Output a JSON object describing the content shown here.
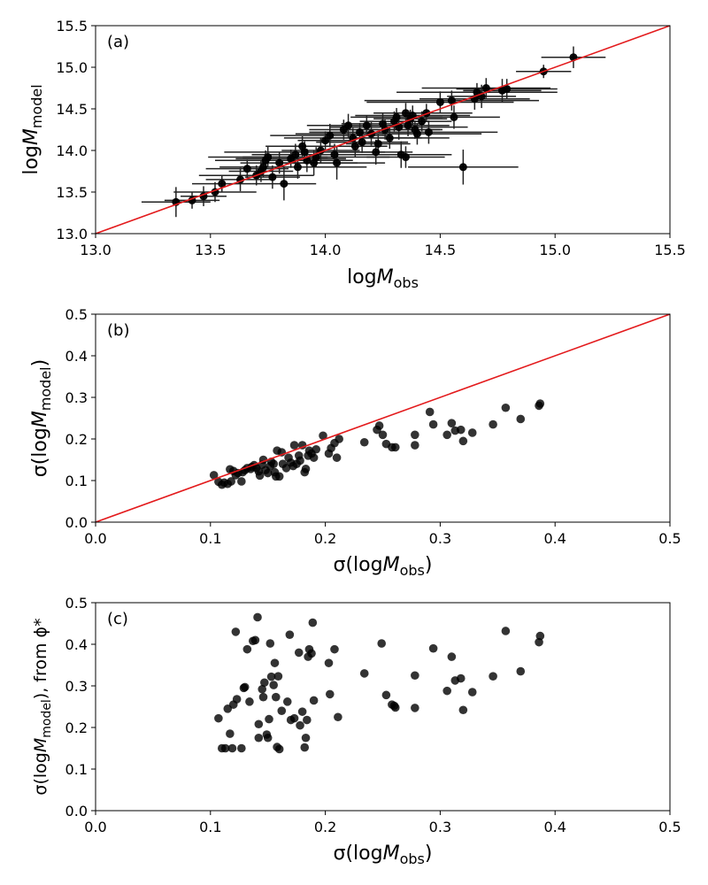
{
  "chart_data": [
    {
      "type": "scatter",
      "panel_label": "(a)",
      "xlim": [
        13.0,
        15.5
      ],
      "ylim": [
        13.0,
        15.5
      ],
      "xticks": [
        "13.0",
        "13.5",
        "14.0",
        "14.5",
        "15.0",
        "15.5"
      ],
      "yticks": [
        "13.0",
        "13.5",
        "14.0",
        "14.5",
        "15.0",
        "15.5"
      ],
      "xlabel": {
        "prefix": "log",
        "var": "M",
        "sub": "obs",
        "suffix": ""
      },
      "ylabel": {
        "prefix": "log",
        "var": "M",
        "sub": "model",
        "suffix": ""
      },
      "reference_line": {
        "from": [
          13.0,
          13.0
        ],
        "to": [
          15.5,
          15.5
        ],
        "color": "#e31a1c"
      },
      "errorbars": true,
      "points": [
        [
          13.35,
          13.38,
          0.15,
          0.18
        ],
        [
          13.42,
          13.4,
          0.12,
          0.1
        ],
        [
          13.47,
          13.45,
          0.1,
          0.12
        ],
        [
          13.52,
          13.5,
          0.18,
          0.12
        ],
        [
          13.55,
          13.6,
          0.13,
          0.1
        ],
        [
          13.63,
          13.65,
          0.15,
          0.14
        ],
        [
          13.66,
          13.78,
          0.18,
          0.11
        ],
        [
          13.7,
          13.7,
          0.25,
          0.12
        ],
        [
          13.72,
          13.75,
          0.14,
          0.13
        ],
        [
          13.73,
          13.8,
          0.19,
          0.12
        ],
        [
          13.74,
          13.88,
          0.22,
          0.12
        ],
        [
          13.75,
          13.92,
          0.26,
          0.13
        ],
        [
          13.77,
          13.68,
          0.12,
          0.14
        ],
        [
          13.8,
          13.85,
          0.17,
          0.13
        ],
        [
          13.82,
          13.6,
          0.14,
          0.2
        ],
        [
          13.85,
          13.9,
          0.24,
          0.11
        ],
        [
          13.87,
          13.95,
          0.19,
          0.13
        ],
        [
          13.88,
          13.8,
          0.3,
          0.14
        ],
        [
          13.9,
          14.05,
          0.16,
          0.12
        ],
        [
          13.91,
          13.98,
          0.35,
          0.13
        ],
        [
          13.92,
          13.88,
          0.2,
          0.14
        ],
        [
          13.95,
          13.85,
          0.19,
          0.15
        ],
        [
          13.96,
          13.92,
          0.32,
          0.12
        ],
        [
          13.98,
          14.0,
          0.17,
          0.15
        ],
        [
          14.0,
          14.12,
          0.12,
          0.11
        ],
        [
          14.02,
          14.18,
          0.26,
          0.14
        ],
        [
          14.04,
          13.95,
          0.2,
          0.13
        ],
        [
          14.05,
          13.85,
          0.21,
          0.2
        ],
        [
          14.08,
          14.25,
          0.15,
          0.12
        ],
        [
          14.1,
          14.3,
          0.18,
          0.14
        ],
        [
          14.12,
          14.15,
          0.3,
          0.12
        ],
        [
          14.13,
          14.05,
          0.14,
          0.13
        ],
        [
          14.15,
          14.22,
          0.22,
          0.11
        ],
        [
          14.16,
          14.1,
          0.2,
          0.13
        ],
        [
          14.18,
          14.3,
          0.12,
          0.12
        ],
        [
          14.2,
          14.2,
          0.33,
          0.14
        ],
        [
          14.22,
          13.98,
          0.16,
          0.15
        ],
        [
          14.23,
          14.08,
          0.14,
          0.11
        ],
        [
          14.25,
          14.32,
          0.18,
          0.13
        ],
        [
          14.26,
          14.25,
          0.24,
          0.12
        ],
        [
          14.28,
          14.15,
          0.26,
          0.13
        ],
        [
          14.3,
          14.35,
          0.15,
          0.12
        ],
        [
          14.31,
          14.4,
          0.2,
          0.11
        ],
        [
          14.32,
          14.28,
          0.3,
          0.15
        ],
        [
          14.33,
          13.95,
          0.22,
          0.16
        ],
        [
          14.35,
          14.45,
          0.14,
          0.12
        ],
        [
          14.36,
          14.3,
          0.18,
          0.13
        ],
        [
          14.37,
          14.38,
          0.16,
          0.11
        ],
        [
          14.38,
          14.42,
          0.25,
          0.12
        ],
        [
          14.39,
          14.25,
          0.12,
          0.11
        ],
        [
          14.4,
          14.2,
          0.28,
          0.13
        ],
        [
          14.42,
          14.35,
          0.13,
          0.12
        ],
        [
          14.44,
          14.45,
          0.2,
          0.11
        ],
        [
          14.45,
          14.22,
          0.3,
          0.14
        ],
        [
          14.35,
          13.92,
          0.17,
          0.13
        ],
        [
          14.5,
          14.58,
          0.32,
          0.13
        ],
        [
          14.55,
          14.6,
          0.38,
          0.12
        ],
        [
          14.56,
          14.4,
          0.2,
          0.14
        ],
        [
          14.6,
          13.8,
          0.24,
          0.21
        ],
        [
          14.65,
          14.62,
          0.24,
          0.13
        ],
        [
          14.66,
          14.7,
          0.35,
          0.11
        ],
        [
          14.68,
          14.65,
          0.15,
          0.14
        ],
        [
          14.7,
          14.75,
          0.28,
          0.12
        ],
        [
          14.77,
          14.72,
          0.17,
          0.14
        ],
        [
          14.79,
          14.74,
          0.22,
          0.12
        ],
        [
          14.95,
          14.95,
          0.12,
          0.08
        ],
        [
          15.08,
          15.12,
          0.14,
          0.13
        ]
      ]
    },
    {
      "type": "scatter",
      "panel_label": "(b)",
      "xlim": [
        0.0,
        0.5
      ],
      "ylim": [
        0.0,
        0.5
      ],
      "xticks": [
        "0.0",
        "0.1",
        "0.2",
        "0.3",
        "0.4",
        "0.5"
      ],
      "yticks": [
        "0.0",
        "0.1",
        "0.2",
        "0.3",
        "0.4",
        "0.5"
      ],
      "xlabel": {
        "prefix": "σ(log",
        "var": "M",
        "sub": "obs",
        "suffix": ")"
      },
      "ylabel": {
        "prefix": "σ(log",
        "var": "M",
        "sub": "model",
        "suffix": ")"
      },
      "reference_line": {
        "from": [
          0.0,
          0.0
        ],
        "to": [
          0.5,
          0.5
        ],
        "color": "#e31a1c"
      },
      "errorbars": false,
      "points": [
        [
          0.103,
          0.113
        ],
        [
          0.107,
          0.097
        ],
        [
          0.11,
          0.09
        ],
        [
          0.112,
          0.095
        ],
        [
          0.115,
          0.092
        ],
        [
          0.117,
          0.127
        ],
        [
          0.118,
          0.098
        ],
        [
          0.12,
          0.123
        ],
        [
          0.122,
          0.113
        ],
        [
          0.124,
          0.118
        ],
        [
          0.127,
          0.098
        ],
        [
          0.128,
          0.12
        ],
        [
          0.13,
          0.125
        ],
        [
          0.132,
          0.13
        ],
        [
          0.135,
          0.128
        ],
        [
          0.136,
          0.133
        ],
        [
          0.138,
          0.137
        ],
        [
          0.14,
          0.13
        ],
        [
          0.142,
          0.122
        ],
        [
          0.143,
          0.112
        ],
        [
          0.145,
          0.138
        ],
        [
          0.146,
          0.15
        ],
        [
          0.148,
          0.125
        ],
        [
          0.15,
          0.118
        ],
        [
          0.152,
          0.135
        ],
        [
          0.153,
          0.145
        ],
        [
          0.155,
          0.14
        ],
        [
          0.156,
          0.12
        ],
        [
          0.157,
          0.11
        ],
        [
          0.158,
          0.172
        ],
        [
          0.16,
          0.11
        ],
        [
          0.162,
          0.168
        ],
        [
          0.163,
          0.14
        ],
        [
          0.166,
          0.13
        ],
        [
          0.168,
          0.155
        ],
        [
          0.17,
          0.143
        ],
        [
          0.172,
          0.135
        ],
        [
          0.173,
          0.185
        ],
        [
          0.175,
          0.14
        ],
        [
          0.177,
          0.16
        ],
        [
          0.178,
          0.148
        ],
        [
          0.18,
          0.185
        ],
        [
          0.182,
          0.12
        ],
        [
          0.183,
          0.128
        ],
        [
          0.185,
          0.16
        ],
        [
          0.186,
          0.172
        ],
        [
          0.188,
          0.165
        ],
        [
          0.19,
          0.155
        ],
        [
          0.192,
          0.175
        ],
        [
          0.198,
          0.208
        ],
        [
          0.203,
          0.165
        ],
        [
          0.205,
          0.178
        ],
        [
          0.208,
          0.19
        ],
        [
          0.21,
          0.155
        ],
        [
          0.212,
          0.2
        ],
        [
          0.234,
          0.192
        ],
        [
          0.245,
          0.222
        ],
        [
          0.247,
          0.232
        ],
        [
          0.25,
          0.21
        ],
        [
          0.253,
          0.188
        ],
        [
          0.258,
          0.18
        ],
        [
          0.261,
          0.18
        ],
        [
          0.278,
          0.21
        ],
        [
          0.278,
          0.185
        ],
        [
          0.291,
          0.265
        ],
        [
          0.294,
          0.235
        ],
        [
          0.306,
          0.21
        ],
        [
          0.31,
          0.238
        ],
        [
          0.313,
          0.22
        ],
        [
          0.318,
          0.222
        ],
        [
          0.32,
          0.195
        ],
        [
          0.328,
          0.215
        ],
        [
          0.346,
          0.235
        ],
        [
          0.357,
          0.275
        ],
        [
          0.37,
          0.248
        ],
        [
          0.386,
          0.28
        ],
        [
          0.387,
          0.285
        ]
      ]
    },
    {
      "type": "scatter",
      "panel_label": "(c)",
      "xlim": [
        0.0,
        0.5
      ],
      "ylim": [
        0.0,
        0.5
      ],
      "xticks": [
        "0.0",
        "0.1",
        "0.2",
        "0.3",
        "0.4",
        "0.5"
      ],
      "yticks": [
        "0.0",
        "0.1",
        "0.2",
        "0.3",
        "0.4",
        "0.5"
      ],
      "xlabel": {
        "prefix": "σ(log",
        "var": "M",
        "sub": "obs",
        "suffix": ")"
      },
      "ylabel": {
        "prefix": "σ(log",
        "var": "M",
        "sub": "model",
        "suffix": "), from ϕ*"
      },
      "reference_line": null,
      "errorbars": false,
      "points": [
        [
          0.107,
          0.222
        ],
        [
          0.11,
          0.15
        ],
        [
          0.113,
          0.15
        ],
        [
          0.115,
          0.245
        ],
        [
          0.117,
          0.185
        ],
        [
          0.119,
          0.15
        ],
        [
          0.12,
          0.255
        ],
        [
          0.122,
          0.43
        ],
        [
          0.123,
          0.268
        ],
        [
          0.127,
          0.15
        ],
        [
          0.129,
          0.295
        ],
        [
          0.13,
          0.297
        ],
        [
          0.132,
          0.388
        ],
        [
          0.134,
          0.262
        ],
        [
          0.137,
          0.408
        ],
        [
          0.139,
          0.41
        ],
        [
          0.141,
          0.465
        ],
        [
          0.142,
          0.175
        ],
        [
          0.142,
          0.208
        ],
        [
          0.145,
          0.292
        ],
        [
          0.146,
          0.273
        ],
        [
          0.147,
          0.308
        ],
        [
          0.149,
          0.183
        ],
        [
          0.15,
          0.175
        ],
        [
          0.151,
          0.22
        ],
        [
          0.152,
          0.402
        ],
        [
          0.153,
          0.322
        ],
        [
          0.155,
          0.302
        ],
        [
          0.156,
          0.355
        ],
        [
          0.157,
          0.273
        ],
        [
          0.158,
          0.153
        ],
        [
          0.159,
          0.323
        ],
        [
          0.16,
          0.148
        ],
        [
          0.162,
          0.24
        ],
        [
          0.167,
          0.262
        ],
        [
          0.169,
          0.423
        ],
        [
          0.17,
          0.218
        ],
        [
          0.173,
          0.222
        ],
        [
          0.177,
          0.38
        ],
        [
          0.178,
          0.205
        ],
        [
          0.18,
          0.238
        ],
        [
          0.182,
          0.152
        ],
        [
          0.183,
          0.175
        ],
        [
          0.184,
          0.218
        ],
        [
          0.185,
          0.37
        ],
        [
          0.186,
          0.388
        ],
        [
          0.188,
          0.378
        ],
        [
          0.189,
          0.452
        ],
        [
          0.19,
          0.265
        ],
        [
          0.203,
          0.355
        ],
        [
          0.204,
          0.28
        ],
        [
          0.208,
          0.388
        ],
        [
          0.211,
          0.225
        ],
        [
          0.234,
          0.33
        ],
        [
          0.249,
          0.402
        ],
        [
          0.253,
          0.278
        ],
        [
          0.258,
          0.255
        ],
        [
          0.26,
          0.252
        ],
        [
          0.261,
          0.248
        ],
        [
          0.278,
          0.325
        ],
        [
          0.278,
          0.247
        ],
        [
          0.294,
          0.39
        ],
        [
          0.306,
          0.288
        ],
        [
          0.31,
          0.37
        ],
        [
          0.313,
          0.313
        ],
        [
          0.318,
          0.318
        ],
        [
          0.32,
          0.242
        ],
        [
          0.328,
          0.285
        ],
        [
          0.346,
          0.323
        ],
        [
          0.357,
          0.432
        ],
        [
          0.37,
          0.335
        ],
        [
          0.386,
          0.405
        ],
        [
          0.387,
          0.42
        ]
      ]
    }
  ]
}
